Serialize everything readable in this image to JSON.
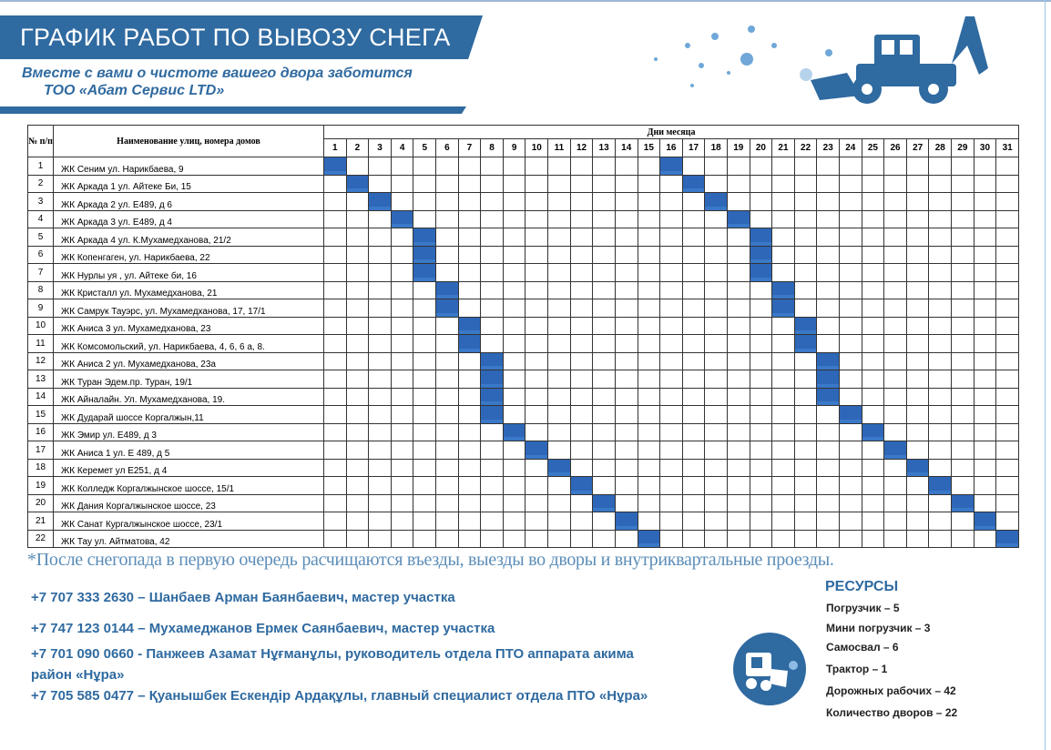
{
  "header": {
    "title": "ГРАФИК РАБОТ ПО ВЫВОЗУ СНЕГА",
    "subtitle_line1": "Вместе с вами о чистоте вашего двора заботится",
    "subtitle_line2": "ТОО «Абат Сервис LTD»"
  },
  "table": {
    "col_no": "№ п/п",
    "col_name": "Наименование улиц, номера домов",
    "col_days": "Дни месяца",
    "days": [
      1,
      2,
      3,
      4,
      5,
      6,
      7,
      8,
      9,
      10,
      11,
      12,
      13,
      14,
      15,
      16,
      17,
      18,
      19,
      20,
      21,
      22,
      23,
      24,
      25,
      26,
      27,
      28,
      29,
      30,
      31
    ],
    "rows": [
      {
        "no": "1",
        "name": "ЖК Сеним ул. Нарикбаева, 9",
        "days": [
          1,
          16
        ]
      },
      {
        "no": "2",
        "name": "ЖК Аркада 1 ул. Айтеке Би, 15",
        "days": [
          2,
          17
        ]
      },
      {
        "no": "3",
        "name": "ЖК Аркада 2 ул. Е489, д 6",
        "days": [
          3,
          18
        ]
      },
      {
        "no": "4",
        "name": "ЖК Аркада 3 ул. Е489, д 4",
        "days": [
          4,
          19
        ]
      },
      {
        "no": "5",
        "name": "ЖК Аркада 4 ул. К.Мухамедханова, 21/2",
        "days": [
          5,
          20
        ]
      },
      {
        "no": "6",
        "name": "ЖК Копенгаген, ул. Нарикбаева, 22",
        "days": [
          5,
          20
        ]
      },
      {
        "no": "7",
        "name": "ЖК Нурлы уя , ул. Айтеке би, 16",
        "days": [
          5,
          20
        ]
      },
      {
        "no": "8",
        "name": "ЖК Кристалл ул. Мухамедханова, 21",
        "days": [
          6,
          21
        ]
      },
      {
        "no": "9",
        "name": "ЖК Самрук Тауэрс, ул. Мухамедханова, 17, 17/1",
        "days": [
          6,
          21
        ]
      },
      {
        "no": "10",
        "name": "ЖК Аниса 3 ул. Мухамедханова, 23",
        "days": [
          7,
          22
        ]
      },
      {
        "no": "11",
        "name": "ЖК Комсомольский, ул. Нарикбаева, 4, 6, 6 а, 8.",
        "days": [
          7,
          22
        ]
      },
      {
        "no": "12",
        "name": "ЖК Аниса 2 ул. Мухамедханова, 23а",
        "days": [
          8,
          23
        ]
      },
      {
        "no": "13",
        "name": "ЖК Туран Эдем.пр. Туран, 19/1",
        "days": [
          8,
          23
        ]
      },
      {
        "no": "14",
        "name": "ЖК Айналайн. Ул. Мухамедханова, 19.",
        "days": [
          8,
          23
        ]
      },
      {
        "no": "15",
        "name": "ЖК Дударай шоссе Коргалжын,11",
        "days": [
          8,
          24
        ]
      },
      {
        "no": "16",
        "name": "ЖК Эмир ул. Е489, д 3",
        "days": [
          9,
          25
        ]
      },
      {
        "no": "17",
        "name": "ЖК Аниса 1 ул. Е 489, д 5",
        "days": [
          10,
          26
        ]
      },
      {
        "no": "18",
        "name": "ЖК Керемет ул Е251, д 4",
        "days": [
          11,
          27
        ]
      },
      {
        "no": "19",
        "name": "ЖК Колледж Коргалжынское шоссе, 15/1",
        "days": [
          12,
          28
        ]
      },
      {
        "no": "20",
        "name": "ЖК Дания Коргалжынское шоссе, 23",
        "days": [
          13,
          29
        ]
      },
      {
        "no": "21",
        "name": "ЖК Санат Кургалжынское шоссе, 23/1",
        "days": [
          14,
          30
        ]
      },
      {
        "no": "22",
        "name": "ЖК Тау ул. Айтматова, 42",
        "days": [
          15,
          31
        ]
      }
    ]
  },
  "note": "*После снегопада в первую очередь расчищаются въезды, выезды во дворы и внутриквартальные проезды.",
  "contacts": [
    "+7 707 333 2630 – Шанбаев Арман Баянбаевич, мастер участка",
    "+7 747 123 0144 – Мухамеджанов Ермек Саянбаевич, мастер участка",
    "+7 701 090 0660 - Панжеев Азамат Нұғманұлы, руководитель отдела ПТО аппарата акима район «Нұра»",
    "+7 705 585 0477 – Қуанышбек Ескендір Ардақұлы, главный специалист отдела ПТО «Нұра»"
  ],
  "resources": {
    "title": "РЕСУРСЫ",
    "items": [
      "Погрузчик – 5",
      "Мини погрузчик – 3",
      "Самосвал – 6",
      "Трактор – 1",
      "Дорожных рабочих – 42",
      "Количество дворов – 22"
    ]
  },
  "colors": {
    "brand": "#2f6aa0",
    "cell_fill": "#2e67b8"
  }
}
